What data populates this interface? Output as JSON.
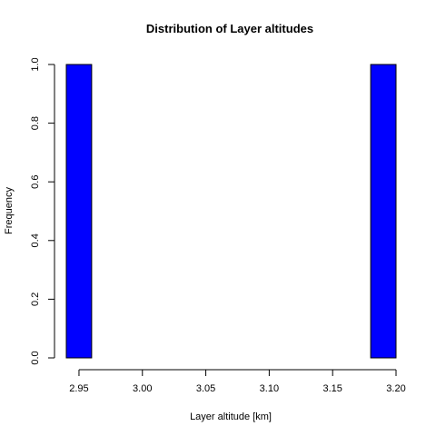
{
  "chart_data": {
    "type": "bar",
    "title": "Distribution of Layer altitudes",
    "xlabel": "Layer altitude [km]",
    "ylabel": "Frequency",
    "bar_color": "#0000ff",
    "bar_border_color": "#000000",
    "xlim": [
      2.94,
      3.2
    ],
    "ylim": [
      0,
      1
    ],
    "grid": false,
    "bins": [
      {
        "x0": 2.94,
        "x1": 2.96,
        "count": 1
      },
      {
        "x0": 2.96,
        "x1": 2.98,
        "count": 0
      },
      {
        "x0": 2.98,
        "x1": 3.0,
        "count": 0
      },
      {
        "x0": 3.0,
        "x1": 3.02,
        "count": 0
      },
      {
        "x0": 3.02,
        "x1": 3.04,
        "count": 0
      },
      {
        "x0": 3.04,
        "x1": 3.06,
        "count": 0
      },
      {
        "x0": 3.06,
        "x1": 3.08,
        "count": 0
      },
      {
        "x0": 3.08,
        "x1": 3.1,
        "count": 0
      },
      {
        "x0": 3.1,
        "x1": 3.12,
        "count": 0
      },
      {
        "x0": 3.12,
        "x1": 3.14,
        "count": 0
      },
      {
        "x0": 3.14,
        "x1": 3.16,
        "count": 0
      },
      {
        "x0": 3.16,
        "x1": 3.18,
        "count": 0
      },
      {
        "x0": 3.18,
        "x1": 3.2,
        "count": 1
      }
    ],
    "x_ticks": [
      {
        "value": 2.95,
        "label": "2.95"
      },
      {
        "value": 3.0,
        "label": "3.00"
      },
      {
        "value": 3.05,
        "label": "3.05"
      },
      {
        "value": 3.1,
        "label": "3.10"
      },
      {
        "value": 3.15,
        "label": "3.15"
      },
      {
        "value": 3.2,
        "label": "3.20"
      }
    ],
    "y_ticks": [
      {
        "value": 0.0,
        "label": "0.0"
      },
      {
        "value": 0.2,
        "label": "0.2"
      },
      {
        "value": 0.4,
        "label": "0.4"
      },
      {
        "value": 0.6,
        "label": "0.6"
      },
      {
        "value": 0.8,
        "label": "0.8"
      },
      {
        "value": 1.0,
        "label": "1.0"
      }
    ]
  }
}
